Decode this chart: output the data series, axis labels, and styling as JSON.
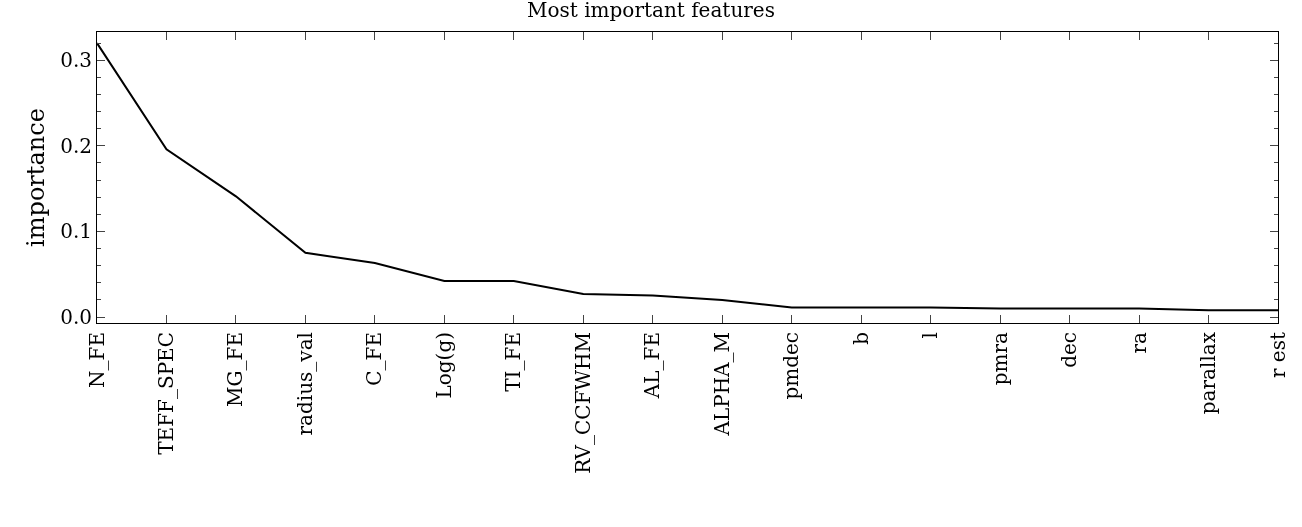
{
  "chart_data": {
    "type": "line",
    "title": "Most important features",
    "ylabel": "importance",
    "categories": [
      "N_FE",
      "TEFF_SPEC",
      "MG_FE",
      "radius_val",
      "C_FE",
      "Log(g)",
      "TI_FE",
      "RV_CCFWHM",
      "AL_FE",
      "ALPHA_M",
      "pmdec",
      "b",
      "l",
      "pmra",
      "dec",
      "ra",
      "parallax",
      "r est"
    ],
    "series": [
      {
        "color": "#000000",
        "values": [
          0.32,
          0.196,
          0.141,
          0.075,
          0.063,
          0.042,
          0.042,
          0.027,
          0.025,
          0.02,
          0.011,
          0.011,
          0.011,
          0.01,
          0.01,
          0.01,
          0.008,
          0.008
        ]
      }
    ],
    "ylim": [
      -0.007,
      0.333
    ],
    "yticks": [
      {
        "value": 0.0,
        "label": "0.0"
      },
      {
        "value": 0.1,
        "label": "0.1"
      },
      {
        "value": 0.2,
        "label": "0.2"
      },
      {
        "value": 0.3,
        "label": "0.3"
      }
    ],
    "marker": "none",
    "line_style": "solid"
  }
}
